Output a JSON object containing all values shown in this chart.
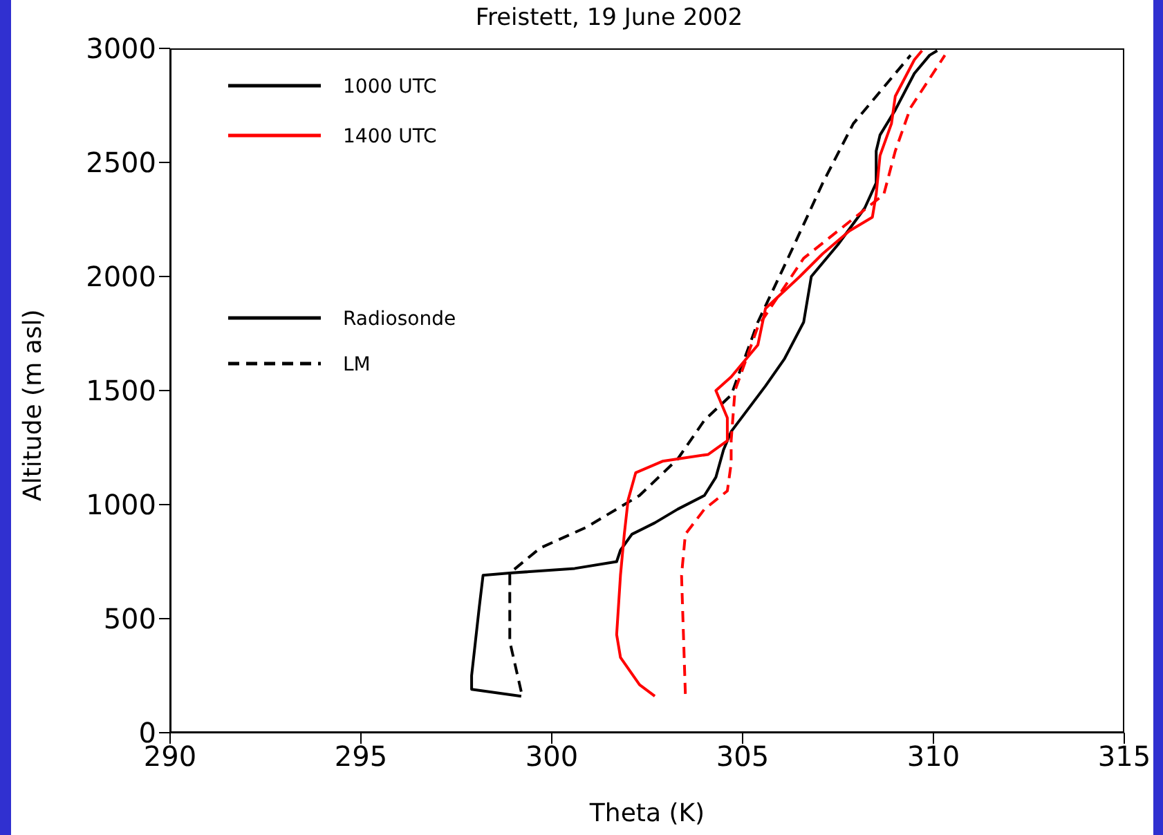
{
  "chart_data": {
    "type": "line",
    "title": "Freistett, 19 June 2002",
    "xlabel": "Theta (K)",
    "ylabel": "Altitude (m asl)",
    "xlim": [
      290,
      315
    ],
    "xticks": [
      290,
      295,
      300,
      305,
      310,
      315
    ],
    "ylim": [
      0,
      3000
    ],
    "yticks": [
      0,
      500,
      1000,
      1500,
      2000,
      2500,
      3000
    ],
    "grid": false,
    "marker": "none",
    "annotations": [
      "1000 UTC",
      "1400 UTC",
      "Radiosonde",
      "LM"
    ],
    "series": [
      {
        "color": "#000000",
        "line_style": "solid",
        "x": [
          299.2,
          297.9,
          297.9,
          298.0,
          298.1,
          298.2,
          298.9,
          300.6,
          301.7,
          301.8,
          302.1,
          302.7,
          303.3,
          304.0,
          304.3,
          304.5,
          304.7,
          305.6,
          306.1,
          306.6,
          306.8,
          307.5,
          308.2,
          308.5,
          308.5,
          308.6,
          309.0,
          309.5,
          309.9,
          310.1
        ],
        "values": [
          160,
          190,
          250,
          400,
          550,
          690,
          700,
          720,
          750,
          800,
          870,
          920,
          980,
          1040,
          1120,
          1240,
          1320,
          1520,
          1640,
          1800,
          2000,
          2140,
          2300,
          2410,
          2550,
          2620,
          2730,
          2890,
          2970,
          2990
        ]
      },
      {
        "color": "#000000",
        "line_style": "dashed",
        "x": [
          299.2,
          298.9,
          298.9,
          299.7,
          300.9,
          302.3,
          303.3,
          304.0,
          304.7,
          305.4,
          306.3,
          307.1,
          307.9,
          308.8,
          309.4
        ],
        "values": [
          180,
          400,
          700,
          810,
          900,
          1040,
          1200,
          1370,
          1480,
          1800,
          2120,
          2410,
          2670,
          2850,
          2970
        ]
      },
      {
        "color": "#ff0000",
        "line_style": "solid",
        "x": [
          302.7,
          302.3,
          301.8,
          301.7,
          301.8,
          301.9,
          302.0,
          302.2,
          302.9,
          304.1,
          304.6,
          304.6,
          304.3,
          304.7,
          305.4,
          305.6,
          306.5,
          307.1,
          307.8,
          308.4,
          308.5,
          308.6,
          308.9,
          309.0,
          309.5,
          309.7
        ],
        "values": [
          160,
          210,
          330,
          430,
          690,
          870,
          1020,
          1140,
          1190,
          1220,
          1280,
          1380,
          1500,
          1560,
          1700,
          1860,
          2000,
          2100,
          2200,
          2260,
          2360,
          2530,
          2670,
          2790,
          2950,
          2990
        ]
      },
      {
        "color": "#ff0000",
        "line_style": "dashed",
        "x": [
          303.5,
          303.4,
          303.5,
          304.0,
          304.6,
          304.7,
          304.7,
          304.8,
          305.4,
          306.6,
          307.8,
          308.7,
          309.0,
          309.4,
          310.3
        ],
        "values": [
          170,
          690,
          870,
          980,
          1060,
          1180,
          1280,
          1500,
          1780,
          2080,
          2240,
          2360,
          2550,
          2740,
          2970
        ]
      }
    ]
  }
}
